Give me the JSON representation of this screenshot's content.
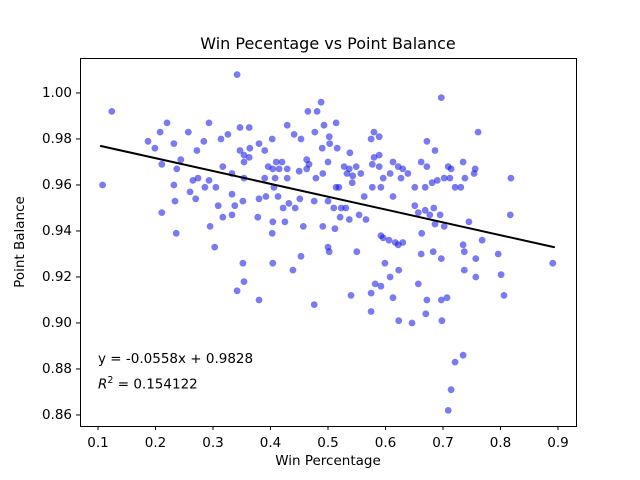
{
  "figure": {
    "title": "Win Pecentage vs Point Balance",
    "x_axis_label": "Win Percentage",
    "y_axis_label": "Point Balance",
    "annotation": {
      "equation": "y = -0.0558x + 0.9828",
      "r_symbol": "R",
      "r_exponent": "2",
      "r_value": " = 0.154122"
    }
  },
  "chart_data": {
    "type": "scatter",
    "title": "Win Pecentage vs Point Balance",
    "xlabel": "Win Percentage",
    "ylabel": "Point Balance",
    "grid": false,
    "legend": "none",
    "xlim": [
      0.0687,
      0.9313
    ],
    "ylim": [
      0.8552,
      1.0152
    ],
    "x_ticks": [
      0.1,
      0.2,
      0.3,
      0.4,
      0.5,
      0.6,
      0.7,
      0.8,
      0.9
    ],
    "x_tick_labels": [
      "0.1",
      "0.2",
      "0.3",
      "0.4",
      "0.5",
      "0.6",
      "0.7",
      "0.8",
      "0.9"
    ],
    "y_ticks": [
      0.86,
      0.88,
      0.9,
      0.92,
      0.94,
      0.96,
      0.98,
      1.0
    ],
    "y_tick_labels": [
      "0.86",
      "0.88",
      "0.90",
      "0.92",
      "0.94",
      "0.96",
      "0.98",
      "1.00"
    ],
    "marker": {
      "color": "#0f0fe6",
      "opacity": 0.55,
      "radius": 3.4
    },
    "trend_line": {
      "slope": -0.0558,
      "intercept": 0.9828,
      "x_start": 0.105,
      "x_end": 0.893,
      "color": "#000000",
      "stroke_width": 2
    },
    "regression": {
      "equation": "y = -0.0558x + 0.9828",
      "r_squared": 0.154122
    },
    "points": [
      [
        0.342,
        1.008
      ],
      [
        0.124,
        0.992
      ],
      [
        0.22,
        0.987
      ],
      [
        0.293,
        0.987
      ],
      [
        0.208,
        0.983
      ],
      [
        0.347,
        0.985
      ],
      [
        0.257,
        0.983
      ],
      [
        0.187,
        0.979
      ],
      [
        0.284,
        0.979
      ],
      [
        0.314,
        0.98
      ],
      [
        0.232,
        0.978
      ],
      [
        0.199,
        0.976
      ],
      [
        0.272,
        0.975
      ],
      [
        0.347,
        0.975
      ],
      [
        0.244,
        0.971
      ],
      [
        0.211,
        0.969
      ],
      [
        0.237,
        0.967
      ],
      [
        0.317,
        0.968
      ],
      [
        0.274,
        0.963
      ],
      [
        0.293,
        0.962
      ],
      [
        0.354,
        0.97
      ],
      [
        0.354,
        0.973
      ],
      [
        0.108,
        0.96
      ],
      [
        0.232,
        0.96
      ],
      [
        0.265,
        0.962
      ],
      [
        0.333,
        0.965
      ],
      [
        0.326,
        0.982
      ],
      [
        0.354,
        0.963
      ],
      [
        0.488,
        0.996
      ],
      [
        0.465,
        0.992
      ],
      [
        0.481,
        0.992
      ],
      [
        0.429,
        0.986
      ],
      [
        0.514,
        0.987
      ],
      [
        0.363,
        0.985
      ],
      [
        0.441,
        0.982
      ],
      [
        0.477,
        0.983
      ],
      [
        0.493,
        0.986
      ],
      [
        0.453,
        0.98
      ],
      [
        0.502,
        0.981
      ],
      [
        0.503,
        0.978
      ],
      [
        0.58,
        0.983
      ],
      [
        0.589,
        0.981
      ],
      [
        0.575,
        0.98
      ],
      [
        0.38,
        0.978
      ],
      [
        0.403,
        0.98
      ],
      [
        0.49,
        0.976
      ],
      [
        0.516,
        0.976
      ],
      [
        0.538,
        0.974
      ],
      [
        0.363,
        0.972
      ],
      [
        0.39,
        0.975
      ],
      [
        0.41,
        0.97
      ],
      [
        0.42,
        0.97
      ],
      [
        0.463,
        0.971
      ],
      [
        0.467,
        0.969
      ],
      [
        0.5,
        0.97
      ],
      [
        0.528,
        0.968
      ],
      [
        0.537,
        0.967
      ],
      [
        0.549,
        0.968
      ],
      [
        0.58,
        0.972
      ],
      [
        0.589,
        0.973
      ],
      [
        0.577,
        0.969
      ],
      [
        0.589,
        0.968
      ],
      [
        0.396,
        0.968
      ],
      [
        0.404,
        0.967
      ],
      [
        0.415,
        0.967
      ],
      [
        0.429,
        0.967
      ],
      [
        0.45,
        0.966
      ],
      [
        0.463,
        0.967
      ],
      [
        0.491,
        0.965
      ],
      [
        0.533,
        0.965
      ],
      [
        0.543,
        0.964
      ],
      [
        0.557,
        0.965
      ],
      [
        0.613,
        0.97
      ],
      [
        0.622,
        0.968
      ],
      [
        0.63,
        0.967
      ],
      [
        0.608,
        0.965
      ],
      [
        0.639,
        0.965
      ],
      [
        0.39,
        0.963
      ],
      [
        0.408,
        0.963
      ],
      [
        0.429,
        0.963
      ],
      [
        0.479,
        0.963
      ],
      [
        0.542,
        0.961
      ],
      [
        0.596,
        0.963
      ],
      [
        0.627,
        0.963
      ],
      [
        0.364,
        0.976
      ],
      [
        0.697,
        0.998
      ],
      [
        0.761,
        0.983
      ],
      [
        0.672,
        0.979
      ],
      [
        0.686,
        0.975
      ],
      [
        0.662,
        0.97
      ],
      [
        0.672,
        0.968
      ],
      [
        0.709,
        0.968
      ],
      [
        0.714,
        0.967
      ],
      [
        0.735,
        0.97
      ],
      [
        0.756,
        0.967
      ],
      [
        0.702,
        0.963
      ],
      [
        0.712,
        0.963
      ],
      [
        0.738,
        0.963
      ],
      [
        0.754,
        0.965
      ],
      [
        0.818,
        0.963
      ],
      [
        0.69,
        0.962
      ],
      [
        0.681,
        0.961
      ],
      [
        0.26,
        0.957
      ],
      [
        0.286,
        0.959
      ],
      [
        0.305,
        0.959
      ],
      [
        0.27,
        0.954
      ],
      [
        0.234,
        0.953
      ],
      [
        0.211,
        0.948
      ],
      [
        0.309,
        0.951
      ],
      [
        0.333,
        0.956
      ],
      [
        0.338,
        0.951
      ],
      [
        0.352,
        0.953
      ],
      [
        0.317,
        0.946
      ],
      [
        0.333,
        0.947
      ],
      [
        0.295,
        0.942
      ],
      [
        0.236,
        0.939
      ],
      [
        0.303,
        0.933
      ],
      [
        0.352,
        0.926
      ],
      [
        0.342,
        0.914
      ],
      [
        0.354,
        0.918
      ],
      [
        0.406,
        0.959
      ],
      [
        0.38,
        0.954
      ],
      [
        0.392,
        0.955
      ],
      [
        0.413,
        0.955
      ],
      [
        0.432,
        0.952
      ],
      [
        0.443,
        0.95
      ],
      [
        0.422,
        0.95
      ],
      [
        0.451,
        0.954
      ],
      [
        0.476,
        0.953
      ],
      [
        0.5,
        0.953
      ],
      [
        0.514,
        0.959
      ],
      [
        0.519,
        0.959
      ],
      [
        0.563,
        0.955
      ],
      [
        0.577,
        0.959
      ],
      [
        0.592,
        0.959
      ],
      [
        0.613,
        0.955
      ],
      [
        0.51,
        0.95
      ],
      [
        0.523,
        0.95
      ],
      [
        0.531,
        0.95
      ],
      [
        0.521,
        0.946
      ],
      [
        0.537,
        0.945
      ],
      [
        0.554,
        0.947
      ],
      [
        0.566,
        0.945
      ],
      [
        0.378,
        0.946
      ],
      [
        0.404,
        0.944
      ],
      [
        0.425,
        0.944
      ],
      [
        0.457,
        0.942
      ],
      [
        0.491,
        0.942
      ],
      [
        0.512,
        0.941
      ],
      [
        0.403,
        0.939
      ],
      [
        0.592,
        0.938
      ],
      [
        0.596,
        0.937
      ],
      [
        0.606,
        0.936
      ],
      [
        0.617,
        0.935
      ],
      [
        0.63,
        0.935
      ],
      [
        0.5,
        0.933
      ],
      [
        0.502,
        0.931
      ],
      [
        0.55,
        0.931
      ],
      [
        0.453,
        0.929
      ],
      [
        0.404,
        0.926
      ],
      [
        0.439,
        0.923
      ],
      [
        0.599,
        0.926
      ],
      [
        0.608,
        0.92
      ],
      [
        0.623,
        0.923
      ],
      [
        0.582,
        0.917
      ],
      [
        0.592,
        0.916
      ],
      [
        0.54,
        0.912
      ],
      [
        0.575,
        0.913
      ],
      [
        0.38,
        0.91
      ],
      [
        0.476,
        0.908
      ],
      [
        0.613,
        0.911
      ],
      [
        0.622,
        0.934
      ],
      [
        0.669,
        0.959
      ],
      [
        0.721,
        0.959
      ],
      [
        0.731,
        0.959
      ],
      [
        0.651,
        0.951
      ],
      [
        0.684,
        0.95
      ],
      [
        0.669,
        0.949
      ],
      [
        0.657,
        0.948
      ],
      [
        0.677,
        0.947
      ],
      [
        0.695,
        0.947
      ],
      [
        0.686,
        0.943
      ],
      [
        0.702,
        0.942
      ],
      [
        0.663,
        0.939
      ],
      [
        0.817,
        0.947
      ],
      [
        0.745,
        0.944
      ],
      [
        0.768,
        0.936
      ],
      [
        0.735,
        0.934
      ],
      [
        0.737,
        0.931
      ],
      [
        0.662,
        0.93
      ],
      [
        0.683,
        0.931
      ],
      [
        0.697,
        0.928
      ],
      [
        0.757,
        0.928
      ],
      [
        0.796,
        0.93
      ],
      [
        0.891,
        0.926
      ],
      [
        0.757,
        0.92
      ],
      [
        0.801,
        0.921
      ],
      [
        0.737,
        0.923
      ],
      [
        0.657,
        0.917
      ],
      [
        0.707,
        0.911
      ],
      [
        0.672,
        0.91
      ],
      [
        0.806,
        0.912
      ],
      [
        0.697,
        0.91
      ],
      [
        0.651,
        0.959
      ],
      [
        0.575,
        0.905
      ],
      [
        0.623,
        0.901
      ],
      [
        0.67,
        0.904
      ],
      [
        0.698,
        0.901
      ],
      [
        0.646,
        0.9
      ],
      [
        0.721,
        0.883
      ],
      [
        0.735,
        0.886
      ],
      [
        0.714,
        0.871
      ],
      [
        0.709,
        0.862
      ]
    ]
  }
}
